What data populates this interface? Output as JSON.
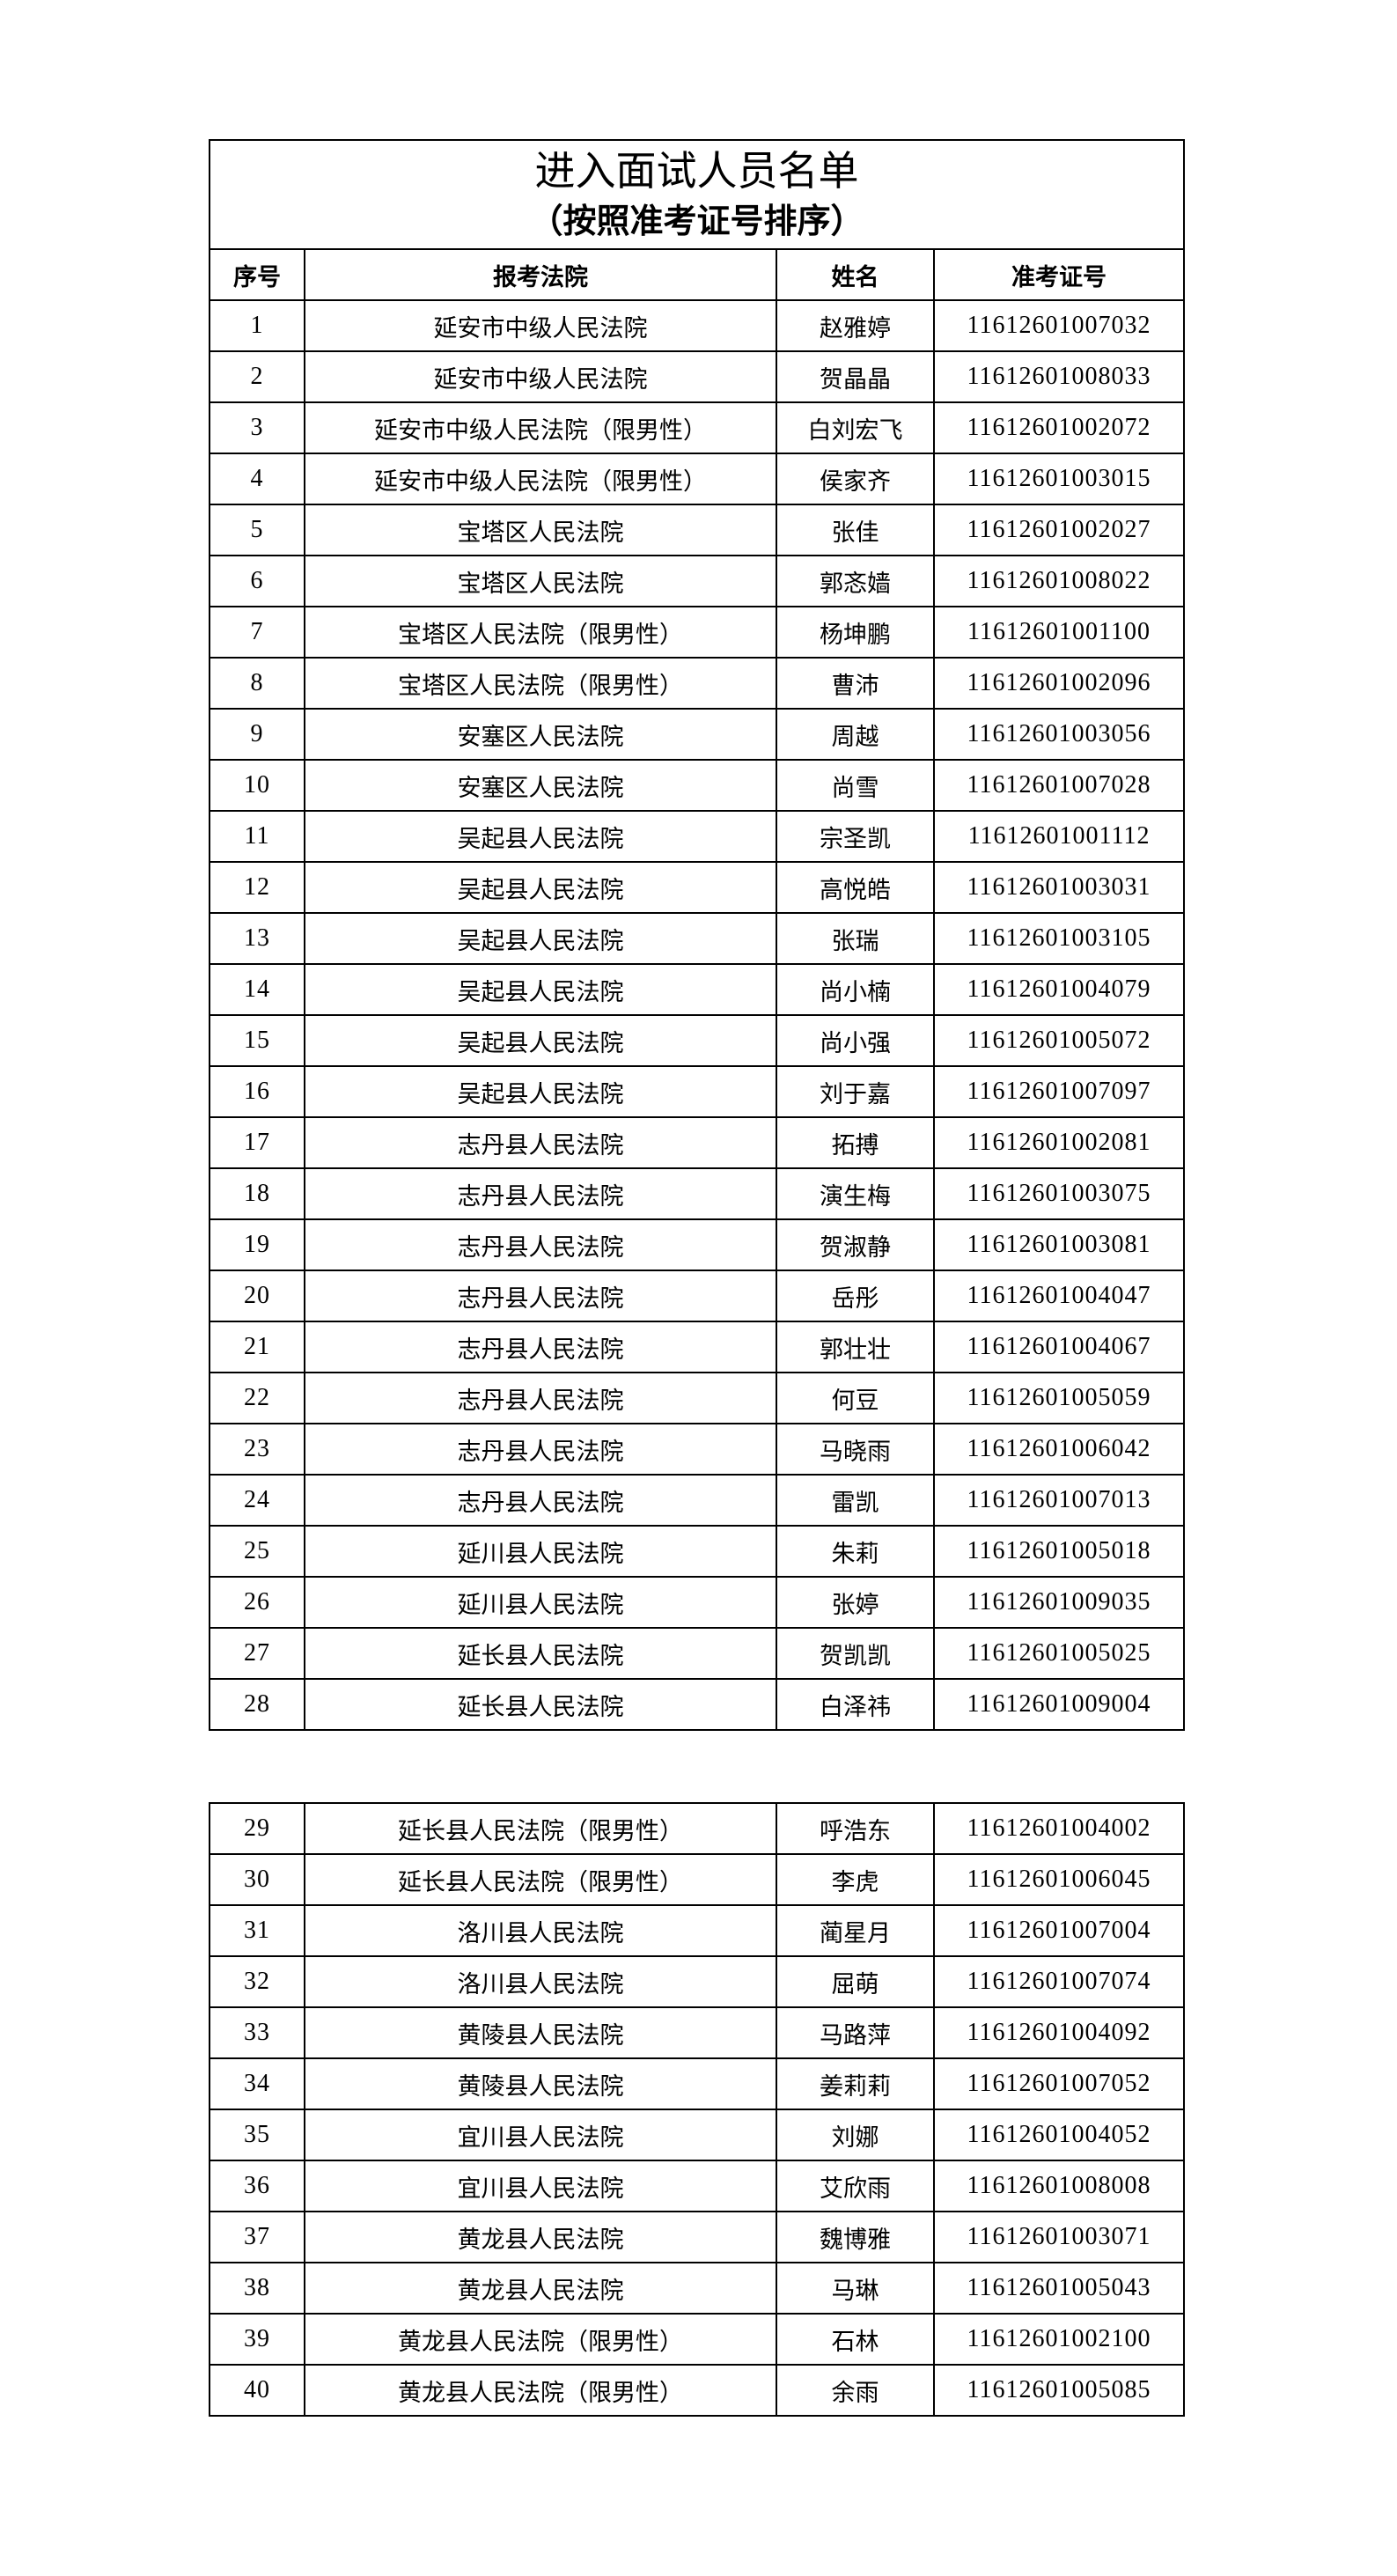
{
  "title": "进入面试人员名单",
  "subtitle": "（按照准考证号排序）",
  "headers": [
    "序号",
    "报考法院",
    "姓名",
    "准考证号"
  ],
  "rows_page1": [
    [
      "1",
      "延安市中级人民法院",
      "赵雅婷",
      "11612601007032"
    ],
    [
      "2",
      "延安市中级人民法院",
      "贺晶晶",
      "11612601008033"
    ],
    [
      "3",
      "延安市中级人民法院（限男性）",
      "白刘宏飞",
      "11612601002072"
    ],
    [
      "4",
      "延安市中级人民法院（限男性）",
      "侯家齐",
      "11612601003015"
    ],
    [
      "5",
      "宝塔区人民法院",
      "张佳",
      "11612601002027"
    ],
    [
      "6",
      "宝塔区人民法院",
      "郭忞嫱",
      "11612601008022"
    ],
    [
      "7",
      "宝塔区人民法院（限男性）",
      "杨坤鹏",
      "11612601001100"
    ],
    [
      "8",
      "宝塔区人民法院（限男性）",
      "曹沛",
      "11612601002096"
    ],
    [
      "9",
      "安塞区人民法院",
      "周越",
      "11612601003056"
    ],
    [
      "10",
      "安塞区人民法院",
      "尚雪",
      "11612601007028"
    ],
    [
      "11",
      "吴起县人民法院",
      "宗圣凯",
      "11612601001112"
    ],
    [
      "12",
      "吴起县人民法院",
      "高悦皓",
      "11612601003031"
    ],
    [
      "13",
      "吴起县人民法院",
      "张瑞",
      "11612601003105"
    ],
    [
      "14",
      "吴起县人民法院",
      "尚小楠",
      "11612601004079"
    ],
    [
      "15",
      "吴起县人民法院",
      "尚小强",
      "11612601005072"
    ],
    [
      "16",
      "吴起县人民法院",
      "刘于嘉",
      "11612601007097"
    ],
    [
      "17",
      "志丹县人民法院",
      "拓搏",
      "11612601002081"
    ],
    [
      "18",
      "志丹县人民法院",
      "演生梅",
      "11612601003075"
    ],
    [
      "19",
      "志丹县人民法院",
      "贺淑静",
      "11612601003081"
    ],
    [
      "20",
      "志丹县人民法院",
      "岳彤",
      "11612601004047"
    ],
    [
      "21",
      "志丹县人民法院",
      "郭壮壮",
      "11612601004067"
    ],
    [
      "22",
      "志丹县人民法院",
      "何豆",
      "11612601005059"
    ],
    [
      "23",
      "志丹县人民法院",
      "马晓雨",
      "11612601006042"
    ],
    [
      "24",
      "志丹县人民法院",
      "雷凯",
      "11612601007013"
    ],
    [
      "25",
      "延川县人民法院",
      "朱莉",
      "11612601005018"
    ],
    [
      "26",
      "延川县人民法院",
      "张婷",
      "11612601009035"
    ],
    [
      "27",
      "延长县人民法院",
      "贺凯凯",
      "11612601005025"
    ],
    [
      "28",
      "延长县人民法院",
      "白泽祎",
      "11612601009004"
    ]
  ],
  "rows_page2": [
    [
      "29",
      "延长县人民法院（限男性）",
      "呼浩东",
      "11612601004002"
    ],
    [
      "30",
      "延长县人民法院（限男性）",
      "李虎",
      "11612601006045"
    ],
    [
      "31",
      "洛川县人民法院",
      "蔺星月",
      "11612601007004"
    ],
    [
      "32",
      "洛川县人民法院",
      "屈萌",
      "11612601007074"
    ],
    [
      "33",
      "黄陵县人民法院",
      "马路萍",
      "11612601004092"
    ],
    [
      "34",
      "黄陵县人民法院",
      "姜莉莉",
      "11612601007052"
    ],
    [
      "35",
      "宜川县人民法院",
      "刘娜",
      "11612601004052"
    ],
    [
      "36",
      "宜川县人民法院",
      "艾欣雨",
      "11612601008008"
    ],
    [
      "37",
      "黄龙县人民法院",
      "魏博雅",
      "11612601003071"
    ],
    [
      "38",
      "黄龙县人民法院",
      "马琳",
      "11612601005043"
    ],
    [
      "39",
      "黄龙县人民法院（限男性）",
      "石林",
      "11612601002100"
    ],
    [
      "40",
      "黄龙县人民法院（限男性）",
      "余雨",
      "11612601005085"
    ]
  ]
}
